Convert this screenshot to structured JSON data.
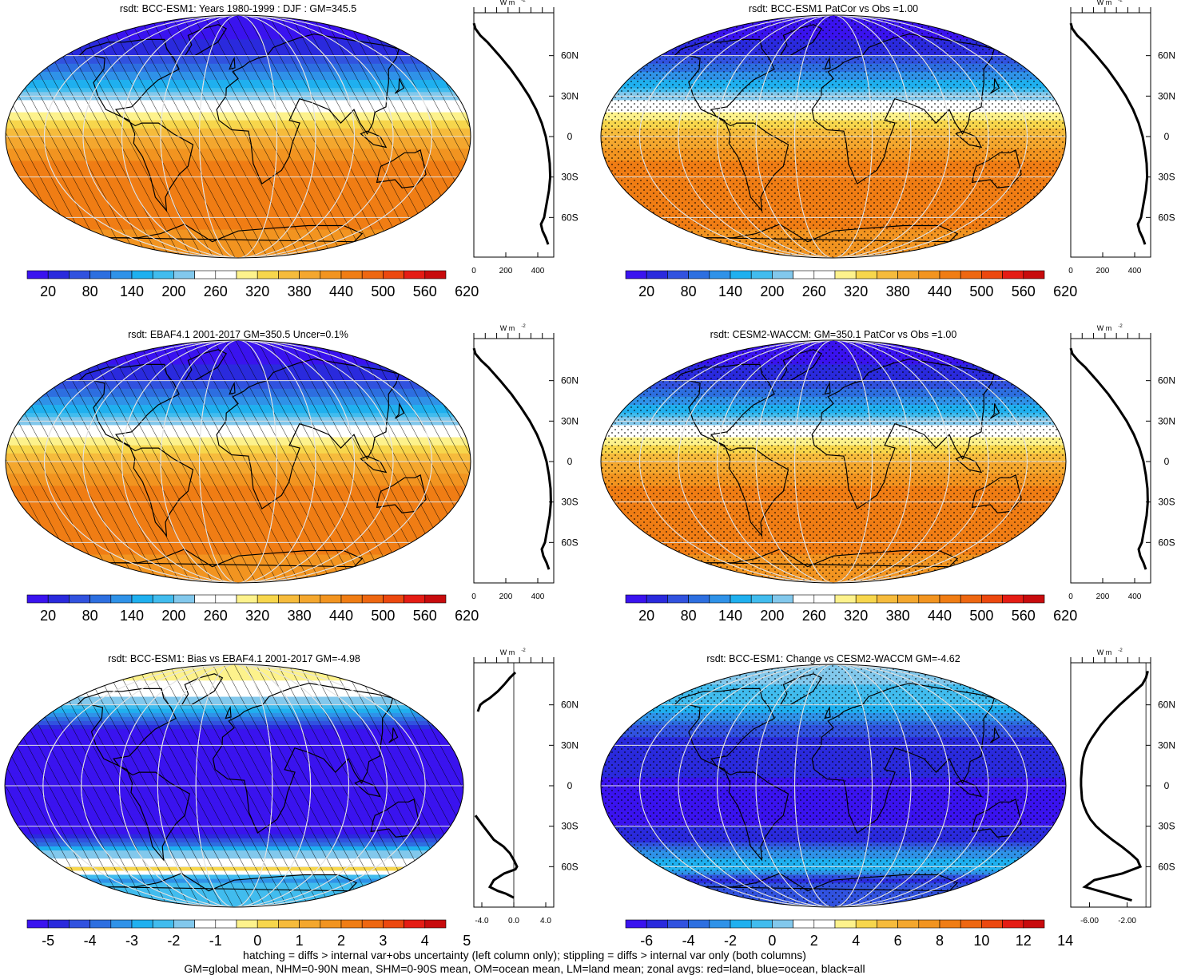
{
  "chart_data": [
    {
      "type": "heatmap",
      "title": "rsdt: BCC-ESM1: Years 1980-1999 : DJF : GM=345.5",
      "colorbar_ticks": [
        "20",
        "80",
        "140",
        "200",
        "260",
        "320",
        "380",
        "440",
        "500",
        "560",
        "620"
      ],
      "colorbar_range": [
        -10,
        650
      ],
      "field": {
        "kind": "insolation",
        "minlat": 87,
        "maxlat": -32,
        "maxval": 500,
        "pole": 0
      },
      "overlay": "hatch",
      "profile": {
        "xlim": [
          0,
          500
        ],
        "xticks": [
          "0",
          "200",
          "400"
        ],
        "unit": "W m-2",
        "lat": [
          84,
          80,
          75,
          70,
          60,
          50,
          40,
          30,
          20,
          10,
          0,
          -10,
          -20,
          -30,
          -40,
          -50,
          -60,
          -65,
          -70,
          -75,
          -80
        ],
        "values": [
          0,
          10,
          40,
          85,
          160,
          230,
          290,
          345,
          390,
          425,
          450,
          465,
          475,
          478,
          470,
          455,
          440,
          420,
          430,
          450,
          465
        ]
      }
    },
    {
      "type": "heatmap",
      "title": "rsdt: BCC-ESM1 PatCor vs Obs =1.00",
      "colorbar_ticks": [
        "20",
        "80",
        "140",
        "200",
        "260",
        "320",
        "380",
        "440",
        "500",
        "560",
        "620"
      ],
      "colorbar_range": [
        -10,
        650
      ],
      "field": {
        "kind": "insolation",
        "minlat": 87,
        "maxlat": -32,
        "maxval": 500,
        "pole": 0
      },
      "overlay": "stipple",
      "profile": {
        "xlim": [
          0,
          500
        ],
        "xticks": [
          "0",
          "200",
          "400"
        ],
        "unit": "W m-2",
        "lat": [
          84,
          80,
          75,
          70,
          60,
          50,
          40,
          30,
          20,
          10,
          0,
          -10,
          -20,
          -30,
          -40,
          -50,
          -60,
          -65,
          -70,
          -75,
          -80
        ],
        "values": [
          0,
          10,
          40,
          85,
          160,
          230,
          290,
          345,
          390,
          425,
          450,
          465,
          475,
          478,
          470,
          455,
          440,
          420,
          430,
          450,
          465
        ]
      }
    },
    {
      "type": "heatmap",
      "title": "rsdt: EBAF4.1 2001-2017 GM=350.5 Uncer=0.1%",
      "colorbar_ticks": [
        "20",
        "80",
        "140",
        "200",
        "260",
        "320",
        "380",
        "440",
        "500",
        "560",
        "620"
      ],
      "colorbar_range": [
        -10,
        650
      ],
      "field": {
        "kind": "insolation",
        "minlat": 87,
        "maxlat": -32,
        "maxval": 500,
        "pole": 0
      },
      "overlay": "hatch",
      "profile": {
        "xlim": [
          0,
          500
        ],
        "xticks": [
          "0",
          "200",
          "400"
        ],
        "unit": "W m-2",
        "lat": [
          84,
          80,
          75,
          70,
          60,
          50,
          40,
          30,
          20,
          10,
          0,
          -10,
          -20,
          -30,
          -40,
          -50,
          -60,
          -65,
          -70,
          -75,
          -80
        ],
        "values": [
          0,
          10,
          45,
          90,
          165,
          235,
          295,
          350,
          395,
          430,
          455,
          470,
          480,
          482,
          475,
          460,
          445,
          425,
          435,
          455,
          470
        ]
      }
    },
    {
      "type": "heatmap",
      "title": "rsdt: CESM2-WACCM: GM=350.1 PatCor vs Obs =1.00",
      "colorbar_ticks": [
        "20",
        "80",
        "140",
        "200",
        "260",
        "320",
        "380",
        "440",
        "500",
        "560",
        "620"
      ],
      "colorbar_range": [
        -10,
        650
      ],
      "field": {
        "kind": "insolation",
        "minlat": 87,
        "maxlat": -32,
        "maxval": 500,
        "pole": 0
      },
      "overlay": "stipple",
      "profile": {
        "xlim": [
          0,
          500
        ],
        "xticks": [
          "0",
          "200",
          "400"
        ],
        "unit": "W m-2",
        "lat": [
          84,
          80,
          75,
          70,
          60,
          50,
          40,
          30,
          20,
          10,
          0,
          -10,
          -20,
          -30,
          -40,
          -50,
          -60,
          -65,
          -70,
          -75,
          -80
        ],
        "values": [
          0,
          10,
          45,
          90,
          165,
          235,
          295,
          350,
          395,
          430,
          455,
          470,
          480,
          482,
          475,
          460,
          445,
          425,
          435,
          455,
          470
        ]
      }
    },
    {
      "type": "heatmap",
      "title": "rsdt: BCC-ESM1: Bias vs EBAF4.1 2001-2017 GM=-4.98",
      "colorbar_ticks": [
        "-5",
        "-4",
        "-3",
        "-2",
        "-1",
        "0",
        "1",
        "2",
        "3",
        "4",
        "5"
      ],
      "colorbar_range": [
        -5.5,
        5.5
      ],
      "field": {
        "kind": "bias",
        "lat": [
          90,
          80,
          75,
          70,
          65,
          60,
          55,
          50,
          45,
          40,
          30,
          0,
          -30,
          -40,
          -45,
          -50,
          -55,
          -60,
          -62,
          -65,
          -70,
          -75,
          -90
        ],
        "val": [
          0.2,
          0.2,
          -0.3,
          -0.8,
          -1.3,
          -1.6,
          -2.5,
          -3.5,
          -4.5,
          -5.2,
          -5.6,
          -5.8,
          -5.8,
          -4.5,
          -3,
          -1.5,
          -0.8,
          0.3,
          0.8,
          -1.2,
          -3,
          -1.8,
          -1.8
        ]
      },
      "overlay": "hatch",
      "profile": {
        "xlim": [
          -5,
          5
        ],
        "xticks": [
          "-4.0",
          "0.0",
          "4.0"
        ],
        "unit": "W m-2",
        "lat": [
          84,
          80,
          75,
          70,
          65,
          62,
          60,
          55
        ],
        "values": [
          0.2,
          -0.5,
          -1.2,
          -2.0,
          -3.0,
          -3.8,
          -4.2,
          -4.5
        ],
        "lat2": [
          -22,
          -30,
          -40,
          -45,
          -50,
          -55,
          -60,
          -62,
          -65,
          -70,
          -75,
          -78,
          -80,
          -83
        ],
        "values2": [
          -4.8,
          -3.8,
          -2.5,
          -1.3,
          -0.5,
          0.0,
          0.4,
          0.2,
          -1.2,
          -2.5,
          -3.0,
          -2.0,
          -1.0,
          0.0
        ]
      }
    },
    {
      "type": "heatmap",
      "title": "rsdt: BCC-ESM1: Change vs CESM2-WACCM GM=-4.62",
      "colorbar_ticks": [
        "-6",
        "-4",
        "-2",
        "0",
        "2",
        "4",
        "6",
        "8",
        "10",
        "12",
        "14"
      ],
      "colorbar_range": [
        -7,
        15
      ],
      "field": {
        "kind": "bias",
        "lat": [
          90,
          80,
          70,
          60,
          50,
          45,
          40,
          30,
          0,
          -30,
          -40,
          -45,
          -50,
          -55,
          -60,
          -65,
          -70,
          -75,
          -90
        ],
        "val": [
          1,
          1,
          0.5,
          -0.5,
          -2.5,
          -3.5,
          -4.5,
          -5.5,
          -6,
          -6,
          -5,
          -3.5,
          -2.5,
          -1,
          -0.5,
          -2.5,
          -6,
          -4,
          -4
        ]
      },
      "overlay": "stipple",
      "profile": {
        "xlim": [
          -8,
          0.5
        ],
        "xticks": [
          "-6.00",
          "-2.00"
        ],
        "unit": "W m-2",
        "lat": [
          85,
          80,
          75,
          70,
          65,
          60,
          55,
          50,
          45,
          40,
          35,
          30,
          25,
          20,
          15,
          10,
          5,
          0,
          -5,
          -10,
          -15,
          -20,
          -25,
          -30,
          -35,
          -40,
          -45,
          -50,
          -55,
          -60,
          -65,
          -70,
          -75,
          -80,
          -85
        ],
        "values": [
          0.2,
          0,
          -0.4,
          -1.2,
          -2.0,
          -2.8,
          -3.5,
          -4.2,
          -4.8,
          -5.3,
          -5.8,
          -6.2,
          -6.5,
          -6.7,
          -6.8,
          -6.85,
          -6.9,
          -6.9,
          -6.85,
          -6.8,
          -6.6,
          -6.3,
          -5.9,
          -5.3,
          -4.5,
          -3.6,
          -2.6,
          -1.7,
          -0.9,
          -0.6,
          -2.5,
          -5.5,
          -6.5,
          -4.0,
          -1.5
        ]
      }
    }
  ],
  "axis_lat_labels": [
    "60N",
    "30N",
    "0",
    "30S",
    "60S"
  ],
  "profile_unit_label": "W m",
  "profile_unit_exp": "-2",
  "colors": {
    "palette": [
      "#3a13ef",
      "#2a2add",
      "#3152df",
      "#2d6fe0",
      "#2f92e8",
      "#1fb0ef",
      "#41bcee",
      "#82c8ec",
      "#ffffff",
      "#ffffff",
      "#fdf28c",
      "#f7d64c",
      "#f6bb3c",
      "#f4a72e",
      "#f29420",
      "#f07d14",
      "#ee6711",
      "#ec480f",
      "#e51c14",
      "#c80b0d"
    ],
    "land_outline": "#000000",
    "grid": "#e2e2e2"
  },
  "footer_line1": "hatching = diffs > internal var+obs uncertainty (left column only); stippling = diffs > internal var only (both columns)",
  "footer_line2": "GM=global mean, NHM=0-90N mean, SHM=0-90S mean, OM=ocean mean, LM=land mean; zonal avgs: red=land, blue=ocean, black=all"
}
